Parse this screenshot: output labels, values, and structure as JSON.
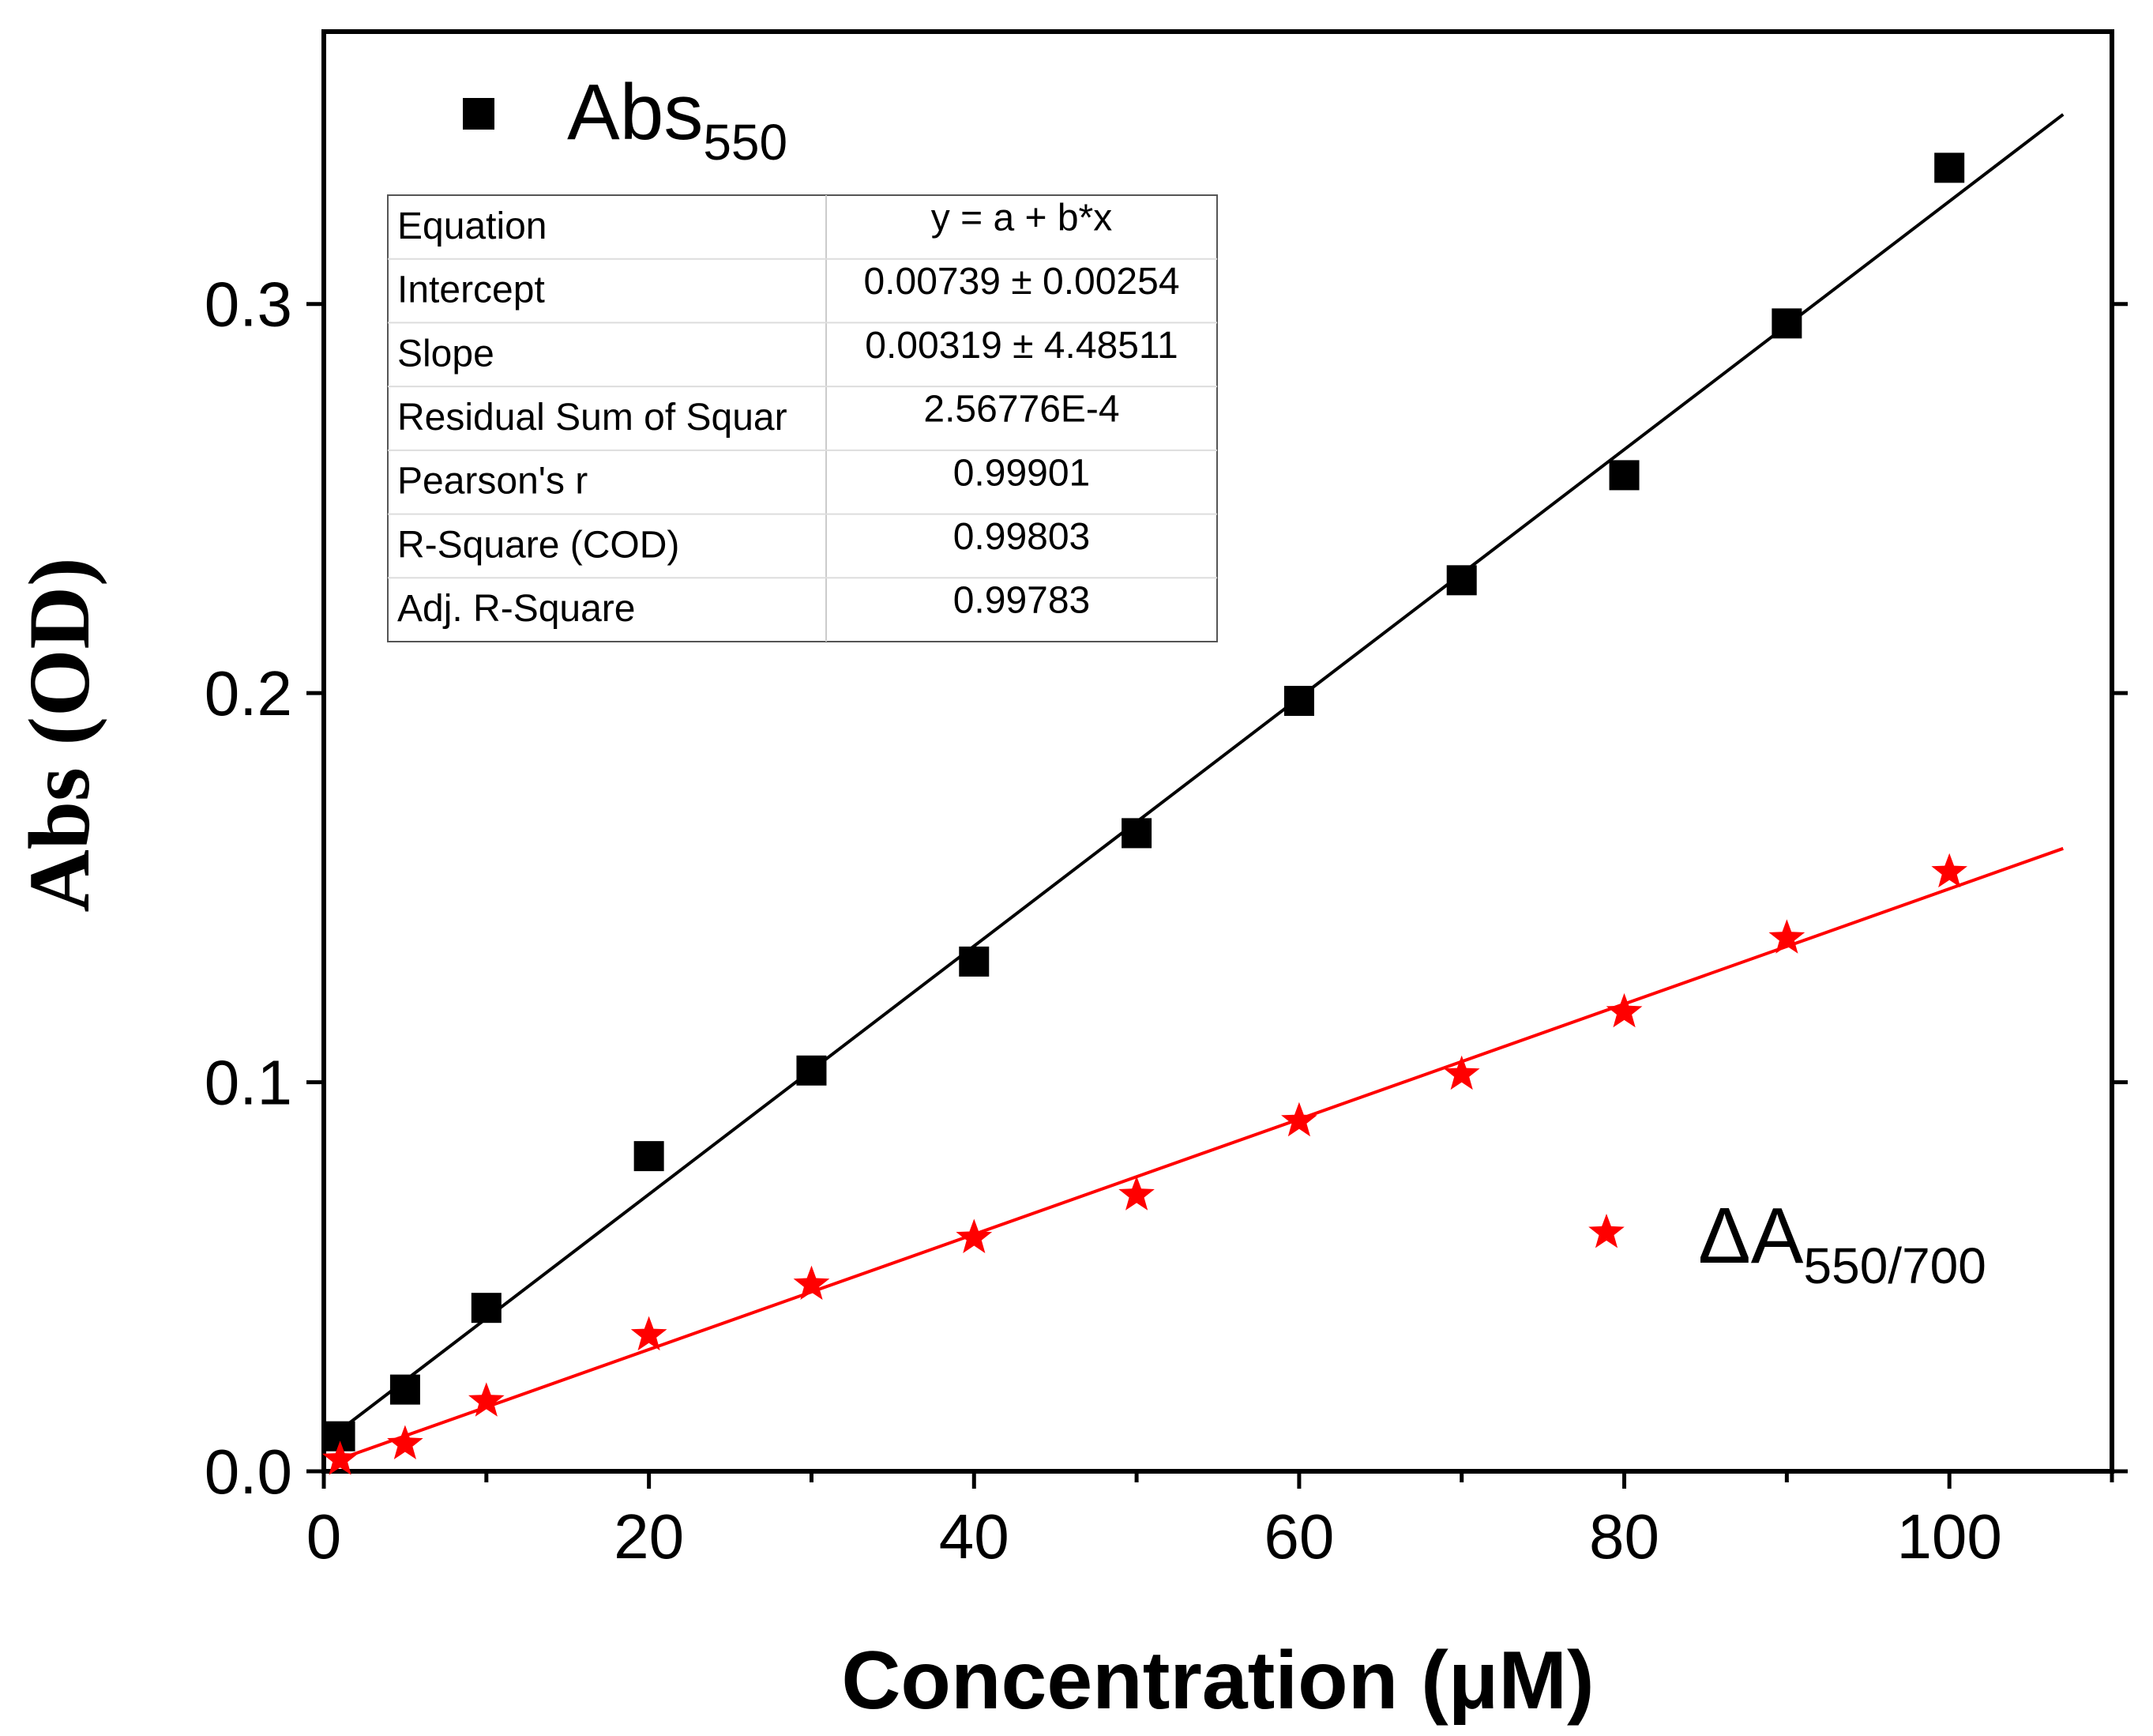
{
  "chart_data": {
    "type": "scatter",
    "xlabel": "Concentration (μM)",
    "ylabel": "Abs (OD)",
    "xlim": [
      0,
      110
    ],
    "ylim": [
      0,
      0.37
    ],
    "x_ticks": [
      "0",
      "20",
      "40",
      "60",
      "80",
      "100"
    ],
    "y_ticks": [
      "0.0",
      "0.1",
      "0.2",
      "0.3"
    ],
    "legend": {
      "placement": "top-left / bottom-right",
      "abs_label_main": "Abs",
      "abs_label_sub": "550",
      "delta_label_main": "ΔA",
      "delta_label_sub": "550/700"
    },
    "series": [
      {
        "name": "Abs550",
        "marker": "square",
        "color": "#000000",
        "x": [
          1,
          5,
          10,
          20,
          30,
          40,
          50,
          60,
          70,
          80,
          90,
          100
        ],
        "y": [
          0.009,
          0.021,
          0.042,
          0.081,
          0.103,
          0.131,
          0.164,
          0.198,
          0.229,
          0.256,
          0.295,
          0.335
        ],
        "fit": {
          "intercept": 0.00739,
          "slope": 0.00319,
          "x_range": [
            1,
            107
          ]
        }
      },
      {
        "name": "ΔA550/700",
        "marker": "star",
        "color": "#ff0000",
        "x": [
          1,
          5,
          10,
          20,
          30,
          40,
          50,
          60,
          70,
          80,
          90,
          100
        ],
        "y": [
          0.003,
          0.007,
          0.018,
          0.035,
          0.048,
          0.06,
          0.071,
          0.09,
          0.102,
          0.118,
          0.137,
          0.154
        ],
        "fit": {
          "intercept": 0.0017,
          "slope": 0.00148,
          "x_range": [
            1,
            107
          ]
        }
      }
    ],
    "fit_table": {
      "rows": [
        {
          "label": "Equation",
          "value": "y = a + b*x"
        },
        {
          "label": "Intercept",
          "value": "0.00739 ± 0.00254"
        },
        {
          "label": "Slope",
          "value": "0.00319 ± 4.48511"
        },
        {
          "label": "Residual Sum of Squar",
          "value": "2.56776E-4"
        },
        {
          "label": "Pearson's r",
          "value": "0.99901"
        },
        {
          "label": "R-Square (COD)",
          "value": "0.99803"
        },
        {
          "label": "Adj. R-Square",
          "value": "0.99783"
        }
      ]
    }
  }
}
